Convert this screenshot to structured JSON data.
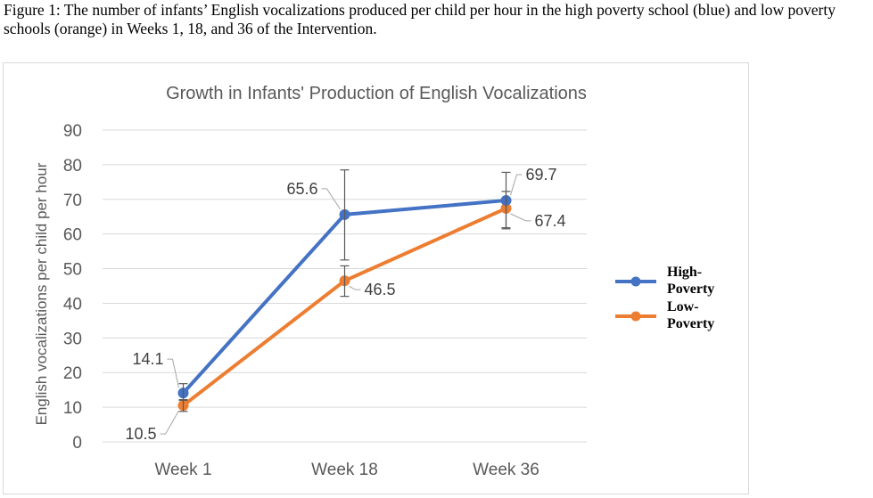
{
  "caption": "Figure 1: The number of infants’ English vocalizations produced per child per hour in the high poverty school (blue) and low poverty schools (orange) in Weeks 1, 18, and 36 of the Intervention.",
  "chart_data": {
    "type": "line",
    "title": "Growth in Infants' Production of English Vocalizations",
    "xlabel": "",
    "ylabel": "English vocalizations per child per hour",
    "categories": [
      "Week 1",
      "Week 18",
      "Week 36"
    ],
    "ylim": [
      0,
      90
    ],
    "yticks": [
      0,
      10,
      20,
      30,
      40,
      50,
      60,
      70,
      80,
      90
    ],
    "grid": true,
    "legend_position": "right",
    "series": [
      {
        "name": "High-Poverty",
        "color": "#4472C4",
        "values": [
          14.1,
          65.6,
          69.7
        ],
        "error_bars": [
          [
            12.0,
            16.8
          ],
          [
            52.5,
            78.5
          ],
          [
            61.5,
            77.8
          ]
        ],
        "labels": [
          "14.1",
          "65.6",
          "69.7"
        ]
      },
      {
        "name": "Low-Poverty",
        "color": "#ED7D31",
        "values": [
          10.5,
          46.5,
          67.4
        ],
        "error_bars": [
          [
            8.8,
            12.2
          ],
          [
            42.0,
            50.8
          ],
          [
            61.8,
            72.3
          ]
        ],
        "labels": [
          "10.5",
          "46.5",
          "67.4"
        ]
      }
    ]
  }
}
